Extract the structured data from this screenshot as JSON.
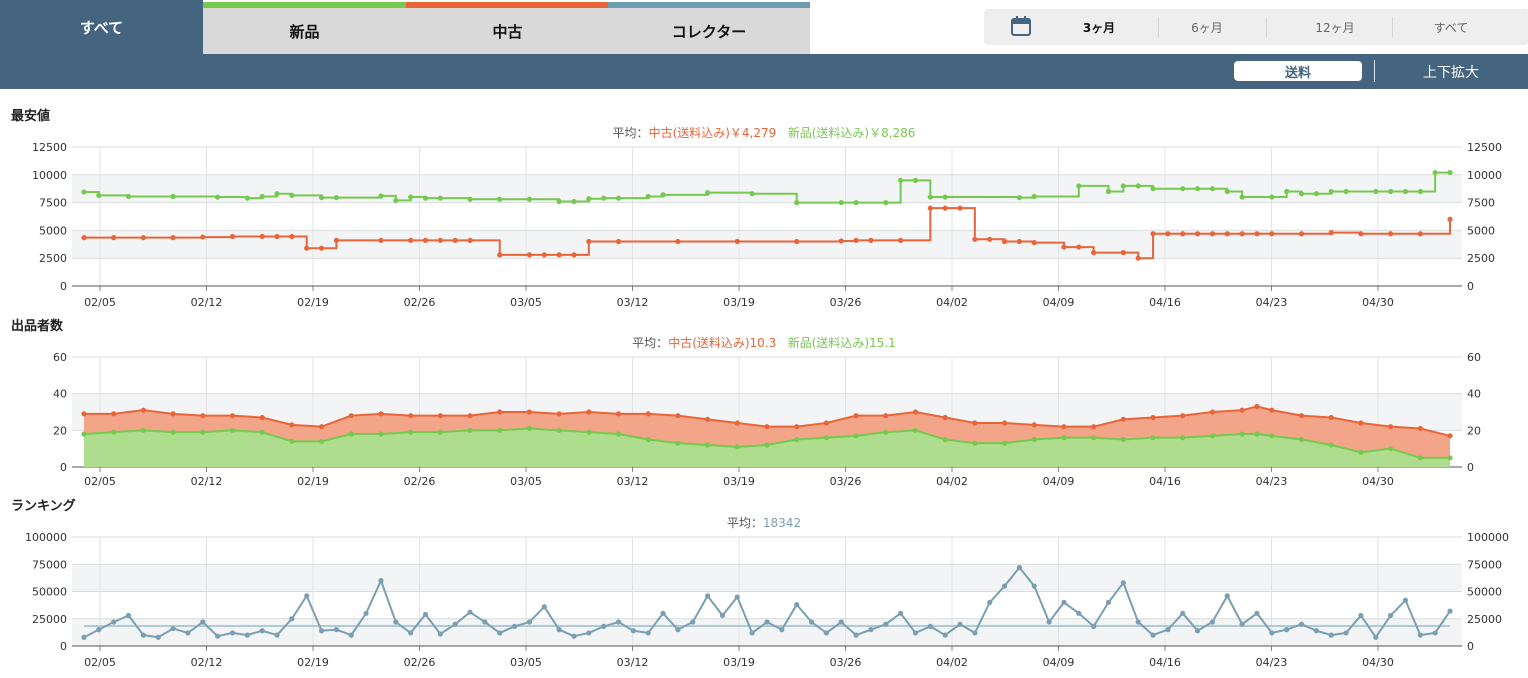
{
  "tabs": [
    {
      "label": "すべて",
      "active": true,
      "color": "#45647f"
    },
    {
      "label": "新品",
      "active": false,
      "color": "#76c94f"
    },
    {
      "label": "中古",
      "active": false,
      "color": "#e8653a"
    },
    {
      "label": "コレクター",
      "active": false,
      "color": "#6e9bb0"
    }
  ],
  "period": {
    "icon": "calendar-icon",
    "options": [
      "3ヶ月",
      "6ヶ月",
      "12ヶ月",
      "すべて"
    ],
    "selected": "3ヶ月"
  },
  "toolbar": {
    "shipping_label": "送料",
    "zoom_label": "上下拡大"
  },
  "colors": {
    "used": "#e8653a",
    "new": "#76c94f",
    "rank": "#7b9fb1",
    "header": "#45647f"
  },
  "chart_data": [
    {
      "type": "line",
      "title": "最安値",
      "avg_prefix": "平均：",
      "avg_items": [
        {
          "text": "中古(送料込み)￥4,279",
          "color": "#e8653a"
        },
        {
          "text": "新品(送料込み)￥8,286",
          "color": "#76c94f"
        }
      ],
      "x_ticks": [
        "02/05",
        "02/12",
        "02/19",
        "02/26",
        "03/05",
        "03/12",
        "03/19",
        "03/26",
        "04/02",
        "04/09",
        "04/16",
        "04/23",
        "04/30"
      ],
      "x_range": [
        0,
        92
      ],
      "ylim": [
        0,
        12500
      ],
      "y_ticks": [
        0,
        2500,
        5000,
        7500,
        10000,
        12500
      ],
      "y_tick_labels": [
        "0",
        "2500",
        "5000",
        "7500",
        "10000",
        "12500"
      ],
      "series": [
        {
          "key": "new",
          "color": "#76c94f",
          "x": [
            0,
            1,
            3,
            6,
            9,
            11,
            12,
            13,
            14,
            16,
            17,
            20,
            21,
            22,
            23,
            24,
            26,
            28,
            30,
            32,
            33,
            34,
            35,
            36,
            38,
            39,
            42,
            45,
            48,
            51,
            52,
            54,
            55,
            56,
            57,
            58,
            63,
            64,
            67,
            69,
            70,
            71,
            72,
            74,
            75,
            76,
            77,
            78,
            80,
            81,
            82,
            83,
            84,
            85,
            87,
            88,
            89,
            90,
            91,
            92
          ],
          "y": [
            8450,
            8150,
            8050,
            8050,
            8000,
            7900,
            8050,
            8300,
            8150,
            7950,
            7950,
            8100,
            7700,
            8000,
            7900,
            7900,
            7800,
            7800,
            7800,
            7600,
            7600,
            7850,
            7900,
            7900,
            8050,
            8200,
            8400,
            8300,
            7500,
            7500,
            7500,
            7500,
            9500,
            9500,
            8000,
            8000,
            7950,
            8050,
            9000,
            8500,
            9000,
            9000,
            8750,
            8750,
            8750,
            8750,
            8500,
            8000,
            8000,
            8500,
            8300,
            8300,
            8500,
            8500,
            8500,
            8500,
            8500,
            8500,
            10200,
            10200
          ]
        },
        {
          "key": "used",
          "color": "#e8653a",
          "x": [
            0,
            2,
            4,
            6,
            8,
            10,
            12,
            13,
            14,
            15,
            16,
            17,
            20,
            22,
            23,
            24,
            25,
            26,
            28,
            30,
            31,
            32,
            33,
            34,
            36,
            40,
            44,
            48,
            51,
            52,
            53,
            55,
            57,
            58,
            59,
            60,
            61,
            62,
            63,
            64,
            66,
            67,
            68,
            70,
            71,
            72,
            73,
            74,
            75,
            76,
            77,
            78,
            79,
            80,
            82,
            84,
            86,
            88,
            90,
            92
          ],
          "y": [
            4350,
            4350,
            4350,
            4350,
            4400,
            4450,
            4450,
            4450,
            4450,
            3400,
            3400,
            4100,
            4100,
            4100,
            4100,
            4100,
            4100,
            4100,
            2800,
            2800,
            2800,
            2800,
            2800,
            4000,
            4000,
            4000,
            4000,
            4000,
            4050,
            4100,
            4100,
            4100,
            7000,
            7000,
            7000,
            4200,
            4200,
            4000,
            4000,
            3900,
            3500,
            3500,
            3000,
            3000,
            2500,
            4700,
            4700,
            4700,
            4700,
            4700,
            4700,
            4700,
            4700,
            4700,
            4700,
            4800,
            4700,
            4700,
            4700,
            6000
          ]
        }
      ]
    },
    {
      "type": "area",
      "title": "出品者数",
      "avg_prefix": "平均：",
      "avg_items": [
        {
          "text": "中古(送料込み)10.3",
          "color": "#e8653a"
        },
        {
          "text": "新品(送料込み)15.1",
          "color": "#76c94f"
        }
      ],
      "x_ticks": [
        "02/05",
        "02/12",
        "02/19",
        "02/26",
        "03/05",
        "03/12",
        "03/19",
        "03/26",
        "04/02",
        "04/09",
        "04/16",
        "04/23",
        "04/30"
      ],
      "x_range": [
        0,
        92
      ],
      "ylim": [
        0,
        60
      ],
      "y_ticks": [
        0,
        20,
        40,
        60
      ],
      "y_tick_labels": [
        "0",
        "20",
        "40",
        "60"
      ],
      "series": [
        {
          "key": "used",
          "color": "#e8653a",
          "fill": "#f3a58a",
          "x": [
            0,
            2,
            4,
            6,
            8,
            10,
            12,
            14,
            16,
            18,
            20,
            22,
            24,
            26,
            28,
            30,
            32,
            34,
            36,
            38,
            40,
            42,
            44,
            46,
            48,
            50,
            52,
            54,
            56,
            58,
            60,
            62,
            64,
            66,
            68,
            70,
            72,
            74,
            76,
            78,
            79,
            80,
            82,
            84,
            86,
            88,
            90,
            92
          ],
          "y": [
            29,
            29,
            31,
            29,
            28,
            28,
            27,
            23,
            22,
            28,
            29,
            28,
            28,
            28,
            30,
            30,
            29,
            30,
            29,
            29,
            28,
            26,
            24,
            22,
            22,
            24,
            28,
            28,
            30,
            27,
            24,
            24,
            23,
            22,
            22,
            26,
            27,
            28,
            30,
            31,
            33,
            31,
            28,
            27,
            24,
            22,
            21,
            17
          ]
        },
        {
          "key": "new",
          "color": "#76c94f",
          "fill": "#aedd8e",
          "x": [
            0,
            2,
            4,
            6,
            8,
            10,
            12,
            14,
            16,
            18,
            20,
            22,
            24,
            26,
            28,
            30,
            32,
            34,
            36,
            38,
            40,
            42,
            44,
            46,
            48,
            50,
            52,
            54,
            56,
            58,
            60,
            62,
            64,
            66,
            68,
            70,
            72,
            74,
            76,
            78,
            79,
            80,
            82,
            84,
            86,
            88,
            90,
            92
          ],
          "y": [
            18,
            19,
            20,
            19,
            19,
            20,
            19,
            14,
            14,
            18,
            18,
            19,
            19,
            20,
            20,
            21,
            20,
            19,
            18,
            15,
            13,
            12,
            11,
            12,
            15,
            16,
            17,
            19,
            20,
            15,
            13,
            13,
            15,
            16,
            16,
            15,
            16,
            16,
            17,
            18,
            18,
            17,
            15,
            12,
            8,
            10,
            5,
            5
          ]
        }
      ]
    },
    {
      "type": "line",
      "title": "ランキング",
      "avg_prefix": "平均：",
      "avg_items": [
        {
          "text": "18342",
          "color": "#7b9fb1"
        }
      ],
      "avg_line": 18342,
      "x_ticks": [
        "02/05",
        "02/12",
        "02/19",
        "02/26",
        "03/05",
        "03/12",
        "03/19",
        "03/26",
        "04/02",
        "04/09",
        "04/16",
        "04/23",
        "04/30"
      ],
      "x_range": [
        0,
        92
      ],
      "ylim": [
        0,
        100000
      ],
      "y_ticks": [
        0,
        25000,
        50000,
        75000,
        100000
      ],
      "y_tick_labels": [
        "0",
        "25000",
        "50000",
        "75000",
        "100000"
      ],
      "series": [
        {
          "key": "rank",
          "color": "#7b9fb1",
          "x": [
            0,
            1,
            2,
            3,
            4,
            5,
            6,
            7,
            8,
            9,
            10,
            11,
            12,
            13,
            14,
            15,
            16,
            17,
            18,
            19,
            20,
            21,
            22,
            23,
            24,
            25,
            26,
            27,
            28,
            29,
            30,
            31,
            32,
            33,
            34,
            35,
            36,
            37,
            38,
            39,
            40,
            41,
            42,
            43,
            44,
            45,
            46,
            47,
            48,
            49,
            50,
            51,
            52,
            53,
            54,
            55,
            56,
            57,
            58,
            59,
            60,
            61,
            62,
            63,
            64,
            65,
            66,
            67,
            68,
            69,
            70,
            71,
            72,
            73,
            74,
            75,
            76,
            77,
            78,
            79,
            80,
            81,
            82,
            83,
            84,
            85,
            86,
            87,
            88,
            89,
            90,
            91,
            92
          ],
          "y": [
            8000,
            15000,
            22000,
            28000,
            10000,
            8000,
            16000,
            12000,
            22000,
            9000,
            12000,
            10000,
            14000,
            10000,
            25000,
            46000,
            14000,
            15000,
            10000,
            30000,
            60000,
            22000,
            12000,
            29000,
            11000,
            20000,
            31000,
            22000,
            12000,
            18000,
            22000,
            36000,
            15000,
            9000,
            12000,
            18000,
            22000,
            14000,
            12000,
            30000,
            15000,
            22000,
            46000,
            28000,
            45000,
            12000,
            22000,
            15000,
            38000,
            22000,
            12000,
            22000,
            10000,
            15000,
            20000,
            30000,
            12000,
            18000,
            10000,
            20000,
            12000,
            40000,
            55000,
            72000,
            55000,
            22000,
            40000,
            30000,
            18000,
            40000,
            58000,
            22000,
            10000,
            15000,
            30000,
            14000,
            22000,
            46000,
            20000,
            30000,
            12000,
            15000,
            20000,
            14000,
            10000,
            12000,
            28000,
            8000,
            28000,
            42000,
            10000,
            12000,
            32000
          ]
        }
      ]
    }
  ]
}
